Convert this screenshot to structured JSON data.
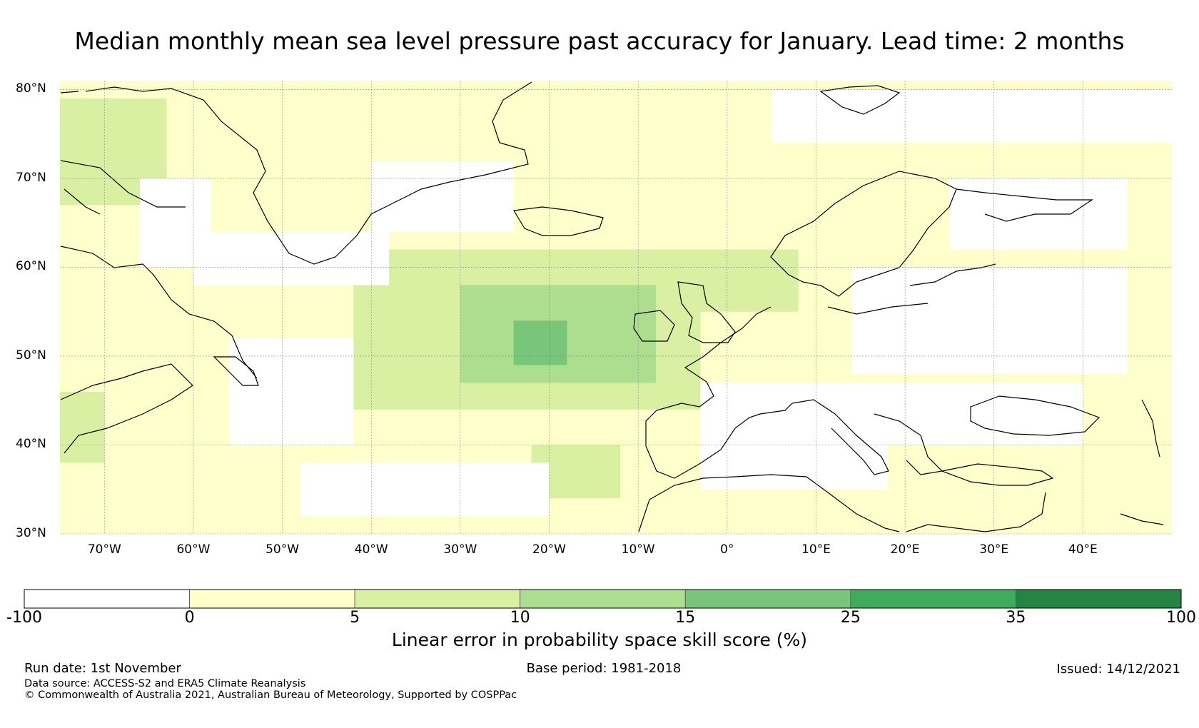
{
  "title": "Median monthly mean sea level pressure past accuracy for January. Lead time: 2 months",
  "map": {
    "lon_range": [
      -75,
      50
    ],
    "lat_range": [
      30,
      81
    ],
    "lat_labels": [
      "30°N",
      "40°N",
      "50°N",
      "60°N",
      "70°N",
      "80°N"
    ],
    "lat_values": [
      30,
      40,
      50,
      60,
      70,
      80
    ],
    "lon_labels": [
      "70°W",
      "60°W",
      "50°W",
      "40°W",
      "30°W",
      "20°W",
      "10°W",
      "0°",
      "10°E",
      "20°E",
      "30°E",
      "40°E"
    ],
    "lon_values": [
      -70,
      -60,
      -50,
      -40,
      -30,
      -20,
      -10,
      0,
      10,
      20,
      30,
      40
    ],
    "regions": [
      {
        "lon": [
          -75,
          50
        ],
        "lat": [
          30,
          81
        ],
        "level": 1
      },
      {
        "lon": [
          -42,
          -3
        ],
        "lat": [
          44,
          62
        ],
        "level": 2
      },
      {
        "lon": [
          -30,
          -8
        ],
        "lat": [
          47,
          58
        ],
        "level": 3
      },
      {
        "lon": [
          -24,
          -18
        ],
        "lat": [
          49,
          54
        ],
        "level": 4
      },
      {
        "lon": [
          -75,
          -63
        ],
        "lat": [
          67,
          79
        ],
        "level": 2
      },
      {
        "lon": [
          -75,
          -70
        ],
        "lat": [
          38,
          46
        ],
        "level": 2
      },
      {
        "lon": [
          -5,
          8
        ],
        "lat": [
          55,
          62
        ],
        "level": 2
      },
      {
        "lon": [
          -22,
          -12
        ],
        "lat": [
          34,
          40
        ],
        "level": 2
      },
      {
        "lon": [
          -60,
          -38
        ],
        "lat": [
          58,
          64
        ],
        "level": 0
      },
      {
        "lon": [
          -56,
          -42
        ],
        "lat": [
          40,
          52
        ],
        "level": 0
      },
      {
        "lon": [
          -48,
          -20
        ],
        "lat": [
          32,
          38
        ],
        "level": 0
      },
      {
        "lon": [
          -66,
          -58
        ],
        "lat": [
          60,
          70
        ],
        "level": 0
      },
      {
        "lon": [
          -3,
          18
        ],
        "lat": [
          35,
          47
        ],
        "level": 0
      },
      {
        "lon": [
          18,
          40
        ],
        "lat": [
          40,
          47
        ],
        "level": 0
      },
      {
        "lon": [
          14,
          45
        ],
        "lat": [
          48,
          60
        ],
        "level": 0
      },
      {
        "lon": [
          25,
          45
        ],
        "lat": [
          62,
          70
        ],
        "level": 0
      },
      {
        "lon": [
          -40,
          -24
        ],
        "lat": [
          64,
          72
        ],
        "level": 0
      },
      {
        "lon": [
          5,
          50
        ],
        "lat": [
          74,
          80
        ],
        "level": 0
      }
    ]
  },
  "colorbar": {
    "ticks": [
      "-100",
      "0",
      "5",
      "10",
      "15",
      "25",
      "35",
      "100"
    ],
    "colors": [
      "#ffffff",
      "#ffffcc",
      "#d9f0a3",
      "#addd8e",
      "#78c679",
      "#41ab5d",
      "#238443"
    ],
    "label": "Linear error in probability space skill score (%)"
  },
  "footer": {
    "run_date": "Run date: 1st November",
    "base_period": "Base period: 1981-2018",
    "issued": "Issued: 14/12/2021",
    "data_source": "Data source: ACCESS-S2 and ERA5 Climate Reanalysis",
    "copyright": "© Commonwealth of Australia 2021, Australian Bureau of Meteorology, Supported by COSPPac"
  }
}
